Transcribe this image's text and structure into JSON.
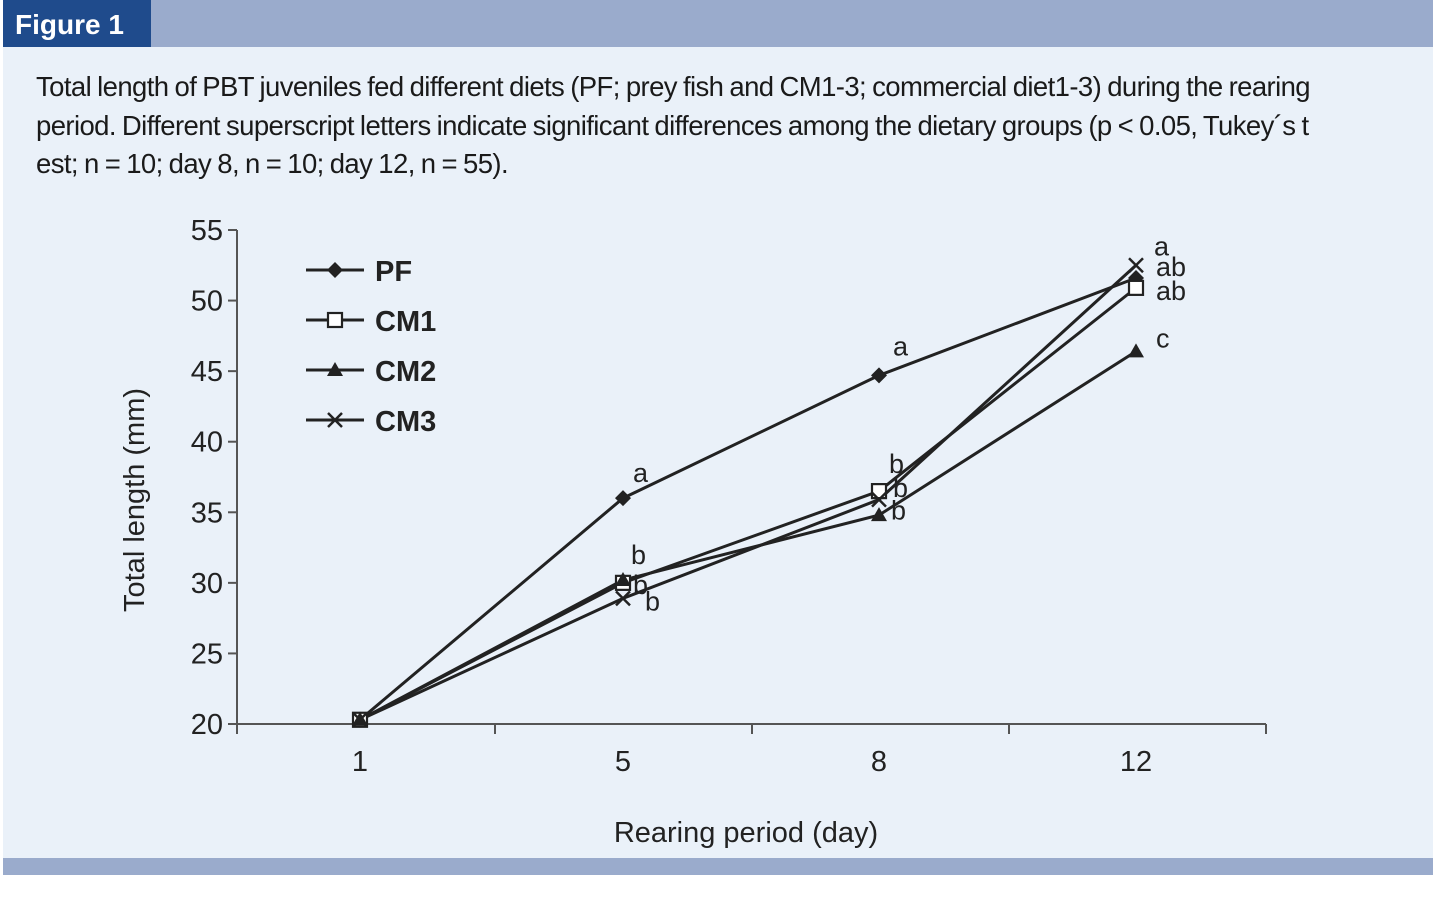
{
  "figure_label": "Figure 1",
  "caption": "Total length of PBT juveniles fed different diets (PF; prey fish and CM1-3; commercial diet1-3) during the rearing period. Different superscript letters indicate significant differences among the dietary groups (p < 0.05, Tukey´s t est; n = 10; day 8, n = 10; day 12, n = 55).",
  "colors": {
    "panel_bg": "#eaf1f9",
    "band": "#9aabcc",
    "label_bg": "#1f4b8c",
    "ink": "#222222"
  },
  "chart_data": {
    "type": "line",
    "title": "",
    "xlabel": "Rearing period (day)",
    "ylabel": "Total length (mm)",
    "categories": [
      "1",
      "5",
      "8",
      "12"
    ],
    "ylim": [
      20,
      55
    ],
    "yticks": [
      "20",
      "25",
      "30",
      "35",
      "40",
      "45",
      "50",
      "55"
    ],
    "legend_position": "top-left",
    "series": [
      {
        "name": "PF",
        "marker": "diamond",
        "values": [
          20.3,
          36.0,
          44.7,
          51.6
        ],
        "sig": [
          "",
          "a",
          "a",
          "ab"
        ]
      },
      {
        "name": "CM1",
        "marker": "open-square",
        "values": [
          20.3,
          30.0,
          36.5,
          50.9
        ],
        "sig": [
          "",
          "b",
          "b",
          "ab"
        ]
      },
      {
        "name": "CM2",
        "marker": "filled-triangle",
        "values": [
          20.3,
          30.2,
          34.8,
          46.4
        ],
        "sig": [
          "",
          "b",
          "b",
          "c"
        ]
      },
      {
        "name": "CM3",
        "marker": "x-cross",
        "values": [
          20.3,
          28.9,
          35.9,
          52.5
        ],
        "sig": [
          "",
          "b",
          "b",
          "a"
        ]
      }
    ]
  }
}
